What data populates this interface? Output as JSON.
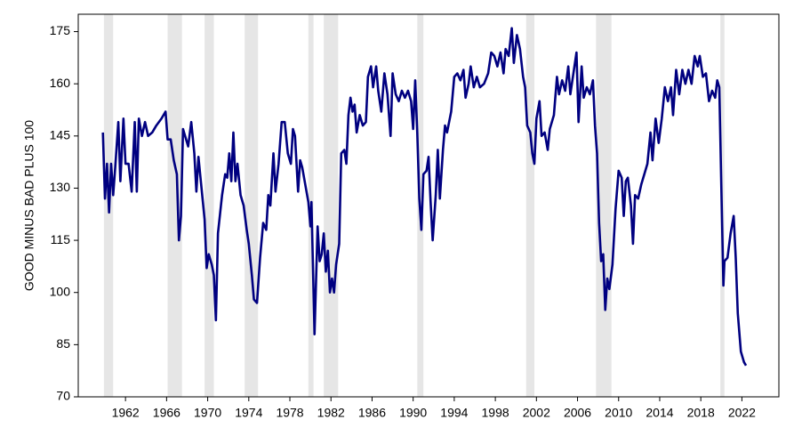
{
  "chart_data": {
    "type": "line",
    "ylabel": "GOOD MINUS BAD PLUS 100",
    "color": "#000080",
    "recession_color": "#e6e6e6",
    "recessions": [
      [
        1959.9,
        1960.8
      ],
      [
        1966.1,
        1967.5
      ],
      [
        1969.7,
        1970.6
      ],
      [
        1973.6,
        1974.9
      ],
      [
        1979.8,
        1980.3
      ],
      [
        1981.3,
        1982.7
      ],
      [
        1990.4,
        1991.0
      ],
      [
        2001.0,
        2001.8
      ],
      [
        2007.8,
        2009.3
      ],
      [
        2019.9,
        2020.3
      ]
    ],
    "x": [
      1959.8,
      1960.0,
      1960.2,
      1960.4,
      1960.6,
      1960.8,
      1961.0,
      1961.3,
      1961.5,
      1961.8,
      1962.0,
      1962.3,
      1962.6,
      1962.9,
      1963.1,
      1963.3,
      1963.6,
      1963.9,
      1964.2,
      1964.6,
      1965.0,
      1965.5,
      1965.9,
      1966.1,
      1966.4,
      1966.7,
      1967.0,
      1967.2,
      1967.4,
      1967.6,
      1967.9,
      1968.1,
      1968.4,
      1968.7,
      1968.9,
      1969.1,
      1969.4,
      1969.7,
      1969.9,
      1970.1,
      1970.4,
      1970.6,
      1970.8,
      1971.0,
      1971.4,
      1971.7,
      1971.9,
      1972.1,
      1972.3,
      1972.5,
      1972.7,
      1972.9,
      1973.2,
      1973.5,
      1973.8,
      1974.0,
      1974.3,
      1974.5,
      1974.8,
      1975.1,
      1975.4,
      1975.7,
      1975.9,
      1976.1,
      1976.4,
      1976.6,
      1976.9,
      1977.2,
      1977.5,
      1977.8,
      1978.1,
      1978.3,
      1978.5,
      1978.8,
      1979.0,
      1979.2,
      1979.5,
      1979.8,
      1980.0,
      1980.1,
      1980.4,
      1980.7,
      1980.9,
      1981.1,
      1981.3,
      1981.5,
      1981.7,
      1981.9,
      1982.1,
      1982.3,
      1982.5,
      1982.8,
      1983.0,
      1983.3,
      1983.5,
      1983.7,
      1983.9,
      1984.1,
      1984.3,
      1984.5,
      1984.8,
      1985.1,
      1985.4,
      1985.6,
      1985.9,
      1986.1,
      1986.4,
      1986.6,
      1986.9,
      1987.2,
      1987.5,
      1987.8,
      1988.0,
      1988.3,
      1988.6,
      1988.9,
      1989.2,
      1989.5,
      1989.8,
      1990.0,
      1990.2,
      1990.4,
      1990.6,
      1990.8,
      1991.0,
      1991.3,
      1991.5,
      1991.7,
      1991.9,
      1992.2,
      1992.4,
      1992.6,
      1992.9,
      1993.1,
      1993.3,
      1993.7,
      1994.0,
      1994.3,
      1994.6,
      1994.9,
      1995.1,
      1995.4,
      1995.6,
      1995.9,
      1996.2,
      1996.5,
      1996.9,
      1997.3,
      1997.6,
      1997.9,
      1998.2,
      1998.5,
      1998.8,
      1999.0,
      1999.3,
      1999.6,
      1999.8,
      2000.1,
      2000.4,
      2000.7,
      2000.9,
      2001.1,
      2001.4,
      2001.6,
      2001.8,
      2002.0,
      2002.3,
      2002.5,
      2002.8,
      2003.1,
      2003.3,
      2003.7,
      2004.0,
      2004.2,
      2004.5,
      2004.8,
      2005.1,
      2005.3,
      2005.6,
      2005.9,
      2006.1,
      2006.4,
      2006.6,
      2006.9,
      2007.2,
      2007.5,
      2007.7,
      2007.9,
      2008.1,
      2008.3,
      2008.5,
      2008.7,
      2008.9,
      2009.1,
      2009.4,
      2009.7,
      2010.0,
      2010.3,
      2010.5,
      2010.7,
      2010.9,
      2011.2,
      2011.4,
      2011.6,
      2011.9,
      2012.2,
      2012.5,
      2012.8,
      2013.1,
      2013.3,
      2013.6,
      2013.9,
      2014.2,
      2014.5,
      2014.8,
      2015.1,
      2015.3,
      2015.6,
      2015.9,
      2016.2,
      2016.5,
      2016.8,
      2017.1,
      2017.4,
      2017.7,
      2017.9,
      2018.2,
      2018.5,
      2018.8,
      2019.1,
      2019.4,
      2019.6,
      2019.8,
      2020.0,
      2020.2,
      2020.3,
      2020.6,
      2020.9,
      2021.2,
      2021.4,
      2021.6,
      2021.9,
      2022.2,
      2022.4
    ],
    "values": [
      146,
      127,
      137,
      123,
      137,
      128,
      136,
      149,
      132,
      150,
      137,
      137,
      129,
      149,
      129,
      150,
      145,
      149,
      145,
      146,
      148,
      150,
      152,
      144,
      144,
      138,
      134,
      115,
      122,
      147,
      144,
      142,
      149,
      140,
      129,
      139,
      130,
      121,
      107,
      111,
      108,
      105,
      92,
      117,
      128,
      134,
      133,
      140,
      132,
      146,
      132,
      137,
      128,
      125,
      118,
      114,
      105,
      98,
      97,
      110,
      120,
      118,
      128,
      125,
      140,
      129,
      137,
      149,
      149,
      140,
      137,
      147,
      145,
      129,
      138,
      136,
      131,
      126,
      119,
      126,
      88,
      119,
      109,
      111,
      117,
      106,
      112,
      100,
      104,
      100,
      108,
      114,
      140,
      141,
      137,
      151,
      156,
      152,
      154,
      146,
      151,
      148,
      149,
      162,
      165,
      159,
      165,
      158,
      152,
      163,
      157,
      145,
      163,
      157,
      155,
      158,
      156,
      158,
      155,
      147,
      161,
      146,
      127,
      118,
      134,
      135,
      139,
      126,
      115,
      128,
      141,
      127,
      141,
      148,
      146,
      152,
      162,
      163,
      161,
      164,
      156,
      160,
      165,
      159,
      162,
      159,
      160,
      163,
      169,
      168,
      165,
      169,
      163,
      170,
      168,
      176,
      166,
      174,
      170,
      162,
      159,
      148,
      146,
      140,
      137,
      150,
      155,
      145,
      146,
      141,
      147,
      151,
      162,
      157,
      161,
      158,
      165,
      157,
      163,
      169,
      149,
      165,
      156,
      159,
      157,
      161,
      148,
      140,
      120,
      109,
      111,
      95,
      104,
      101,
      108,
      124,
      135,
      133,
      122,
      132,
      133,
      125,
      114,
      128,
      127,
      131,
      134,
      137,
      146,
      138,
      150,
      143,
      150,
      159,
      155,
      159,
      151,
      164,
      157,
      164,
      160,
      164,
      160,
      168,
      165,
      168,
      162,
      163,
      155,
      158,
      156,
      161,
      159,
      130,
      102,
      109,
      110,
      117,
      122,
      110,
      94,
      83,
      80,
      79
    ],
    "xlim": [
      1957.4,
      2025.6
    ],
    "ylim": [
      70,
      180
    ],
    "xticks": [
      1962,
      1966,
      1970,
      1974,
      1978,
      1982,
      1986,
      1990,
      1994,
      1998,
      2002,
      2006,
      2010,
      2014,
      2018,
      2022
    ],
    "yticks": [
      70,
      85,
      100,
      115,
      130,
      145,
      160,
      175
    ]
  }
}
